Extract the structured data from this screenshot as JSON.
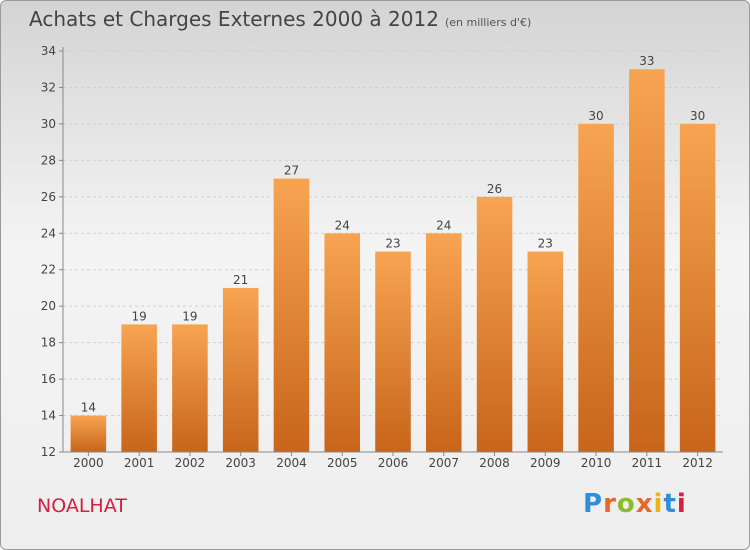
{
  "header": {
    "title": "Achats et Charges Externes 2000 à 2012",
    "subtitle": "(en milliers d'€)"
  },
  "footer": {
    "place": "NOALHAT",
    "logo_text": "Proxiti"
  },
  "colors": {
    "bar_top": "#f7a452",
    "bar_bottom": "#c8651a",
    "place": "#d6203f"
  },
  "chart_data": {
    "type": "bar",
    "categories": [
      "2000",
      "2001",
      "2002",
      "2003",
      "2004",
      "2005",
      "2006",
      "2007",
      "2008",
      "2009",
      "2010",
      "2011",
      "2012"
    ],
    "values": [
      14,
      19,
      19,
      21,
      27,
      24,
      23,
      24,
      26,
      23,
      30,
      33,
      30
    ],
    "ylim": [
      12,
      34
    ],
    "yticks": [
      12,
      14,
      16,
      18,
      20,
      22,
      24,
      26,
      28,
      30,
      32,
      34
    ],
    "grid": true,
    "legend": "none"
  }
}
